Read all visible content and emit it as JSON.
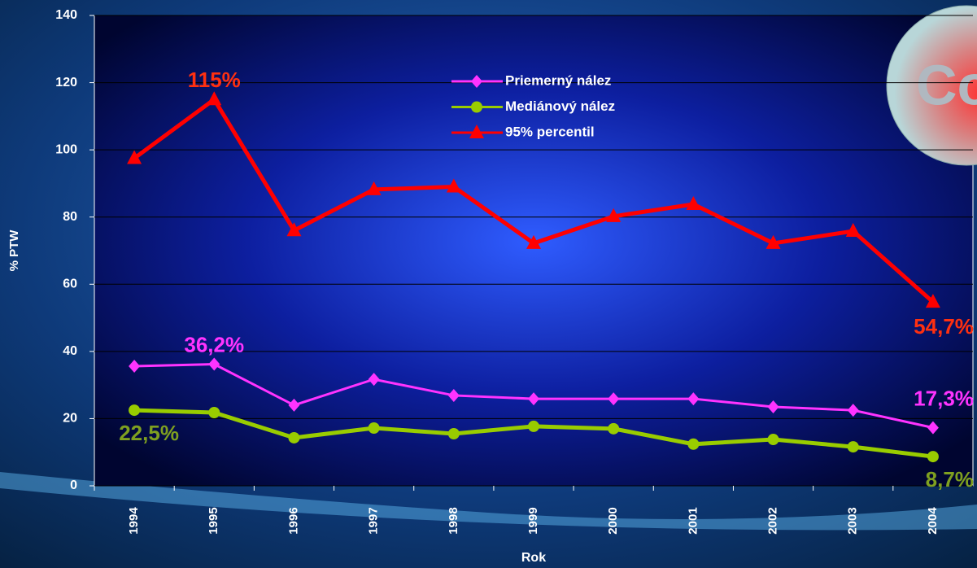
{
  "chart_data": {
    "type": "line",
    "xlabel": "Rok",
    "ylabel": "% PTW",
    "logo_text": "Co",
    "categories": [
      "1994",
      "1995",
      "1996",
      "1997",
      "1998",
      "1999",
      "2000",
      "2001",
      "2002",
      "2003",
      "2004"
    ],
    "ylim": [
      0,
      140
    ],
    "yticks": [
      0,
      20,
      40,
      60,
      80,
      100,
      120,
      140
    ],
    "grid": true,
    "legend": "top",
    "series": [
      {
        "name": "Priemerný nález",
        "color": "#ff33ff",
        "marker": "diamond",
        "values": [
          35.6,
          36.2,
          24,
          31.7,
          26.9,
          25.9,
          25.9,
          25.9,
          23.5,
          22.5,
          17.3
        ],
        "value_labels": [
          null,
          "36,2%",
          null,
          null,
          null,
          null,
          null,
          null,
          null,
          null,
          "17,3%"
        ]
      },
      {
        "name": "Mediánový nález",
        "color": "#99cc00",
        "marker": "circle",
        "values": [
          22.5,
          21.8,
          14.3,
          17.2,
          15.5,
          17.7,
          17,
          12.4,
          13.8,
          11.6,
          8.7
        ],
        "value_labels": [
          "22,5%",
          null,
          null,
          null,
          null,
          null,
          null,
          null,
          null,
          null,
          "8,7%"
        ]
      },
      {
        "name": "95% percentil",
        "color": "#ff0000",
        "marker": "triangle",
        "values": [
          97.5,
          115,
          76,
          88.2,
          89,
          72.2,
          80.2,
          83.8,
          72.2,
          75.8,
          54.7
        ],
        "value_labels": [
          null,
          "115%",
          null,
          null,
          null,
          null,
          null,
          null,
          null,
          null,
          "54,7%"
        ]
      }
    ]
  }
}
